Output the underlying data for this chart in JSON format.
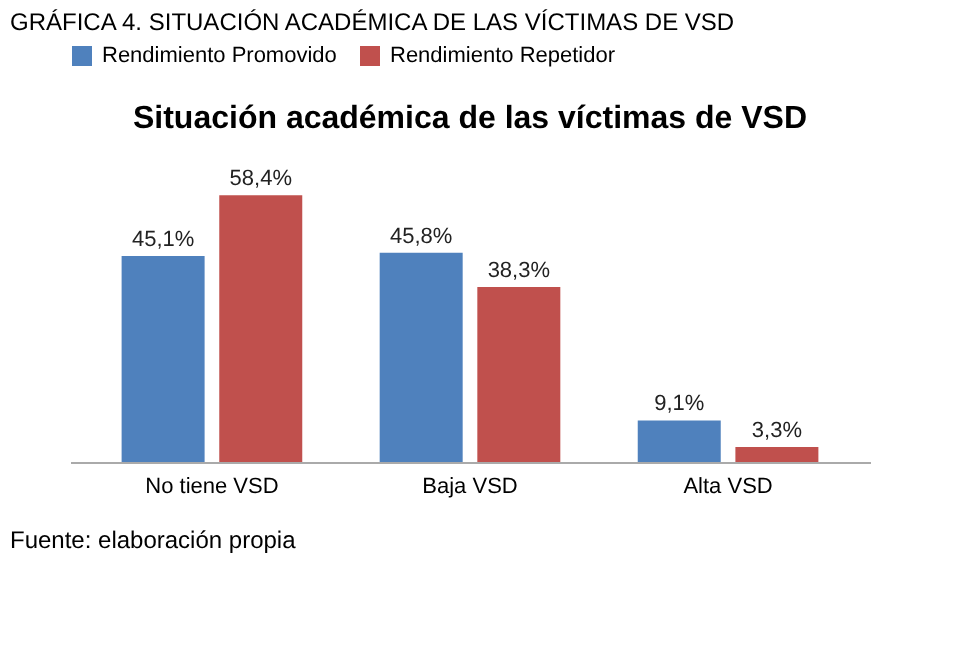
{
  "chart_data": {
    "type": "bar",
    "title": "Situación académica de las víctimas de VSD",
    "categories": [
      "No tiene VSD",
      "Baja VSD",
      "Alta VSD"
    ],
    "series": [
      {
        "name": "Rendimiento Promovido",
        "color": "#4f81bd",
        "values": [
          45.1,
          45.8,
          9.1
        ],
        "value_labels": [
          "45,1%",
          "45,8%",
          "9,1%"
        ]
      },
      {
        "name": "Rendimiento Repetidor",
        "color": "#c0504d",
        "values": [
          58.4,
          38.3,
          3.3
        ],
        "value_labels": [
          "58,4%",
          "38,3%",
          "3,3%"
        ]
      }
    ],
    "annotations": [
      "GRÁFICA 4. SITUACIÓN ACADÉMICA DE LAS VÍCTIMAS DE VSD",
      "Fuente: elaboración propia"
    ],
    "legend": "top",
    "grid": false
  }
}
